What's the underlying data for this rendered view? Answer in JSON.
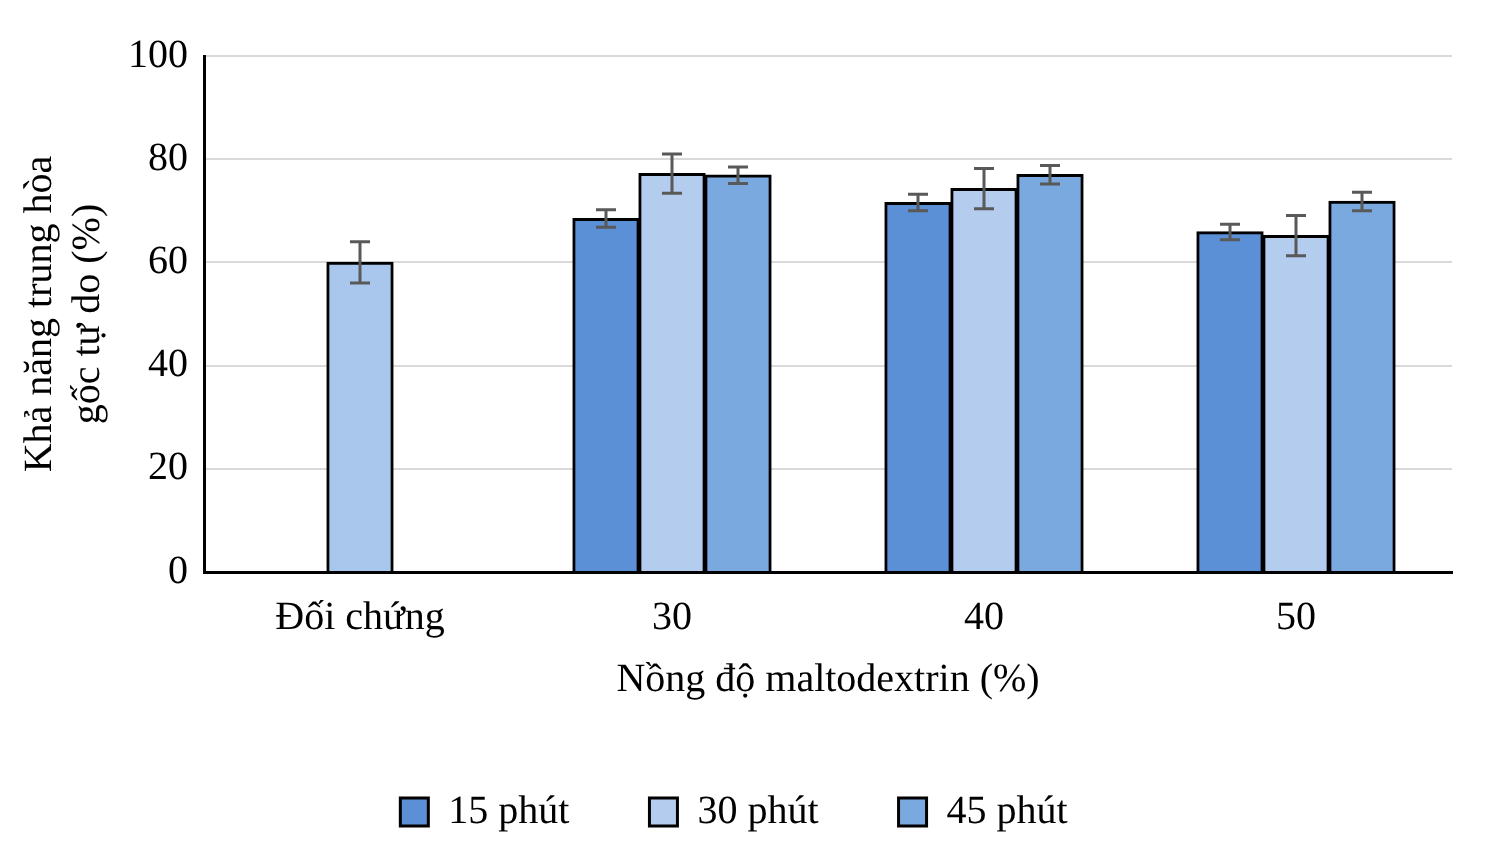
{
  "chart_data": {
    "type": "bar",
    "xlabel": "Nồng độ maltodextrin (%)",
    "ylabel": "Khả năng trung hòa\ngốc tự do (%)",
    "categories": [
      "Đối chứng",
      "30",
      "40",
      "50"
    ],
    "series": [
      {
        "color": "#a9c6ec",
        "values": [
          60.0,
          null,
          null,
          null
        ],
        "errors": [
          4.0,
          null,
          null,
          null
        ]
      },
      {
        "name": "15 phút",
        "color": "#5b8fd6",
        "values": [
          null,
          68.5,
          71.6,
          65.9
        ],
        "errors": [
          null,
          1.7,
          1.6,
          1.5
        ]
      },
      {
        "name": "30 phút",
        "color": "#b4cdee",
        "values": [
          null,
          77.2,
          74.3,
          65.2
        ],
        "errors": [
          null,
          3.8,
          3.9,
          3.9
        ]
      },
      {
        "name": "45 phút",
        "color": "#7aa9e0",
        "values": [
          null,
          76.9,
          77.0,
          71.8
        ],
        "errors": [
          null,
          1.6,
          1.8,
          1.8
        ]
      }
    ],
    "ylim": [
      0,
      100
    ],
    "yticks": [
      0,
      20,
      40,
      60,
      80,
      100
    ],
    "grid": "y",
    "legend": "bottom"
  }
}
